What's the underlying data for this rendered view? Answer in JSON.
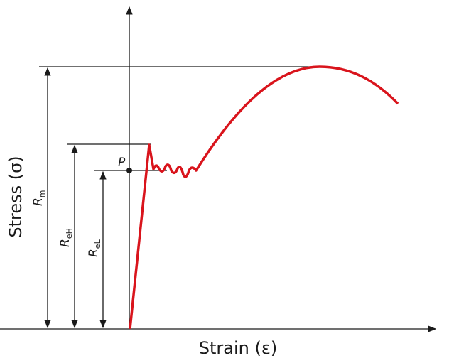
{
  "axes": {
    "y_label": "Stress (σ)",
    "x_label": "Strain (ε)"
  },
  "point": {
    "label": "P"
  },
  "dimensions": [
    {
      "symbol": "R",
      "subscript": "m"
    },
    {
      "symbol": "R",
      "subscript": "eH"
    },
    {
      "symbol": "R",
      "subscript": "eL"
    }
  ]
}
